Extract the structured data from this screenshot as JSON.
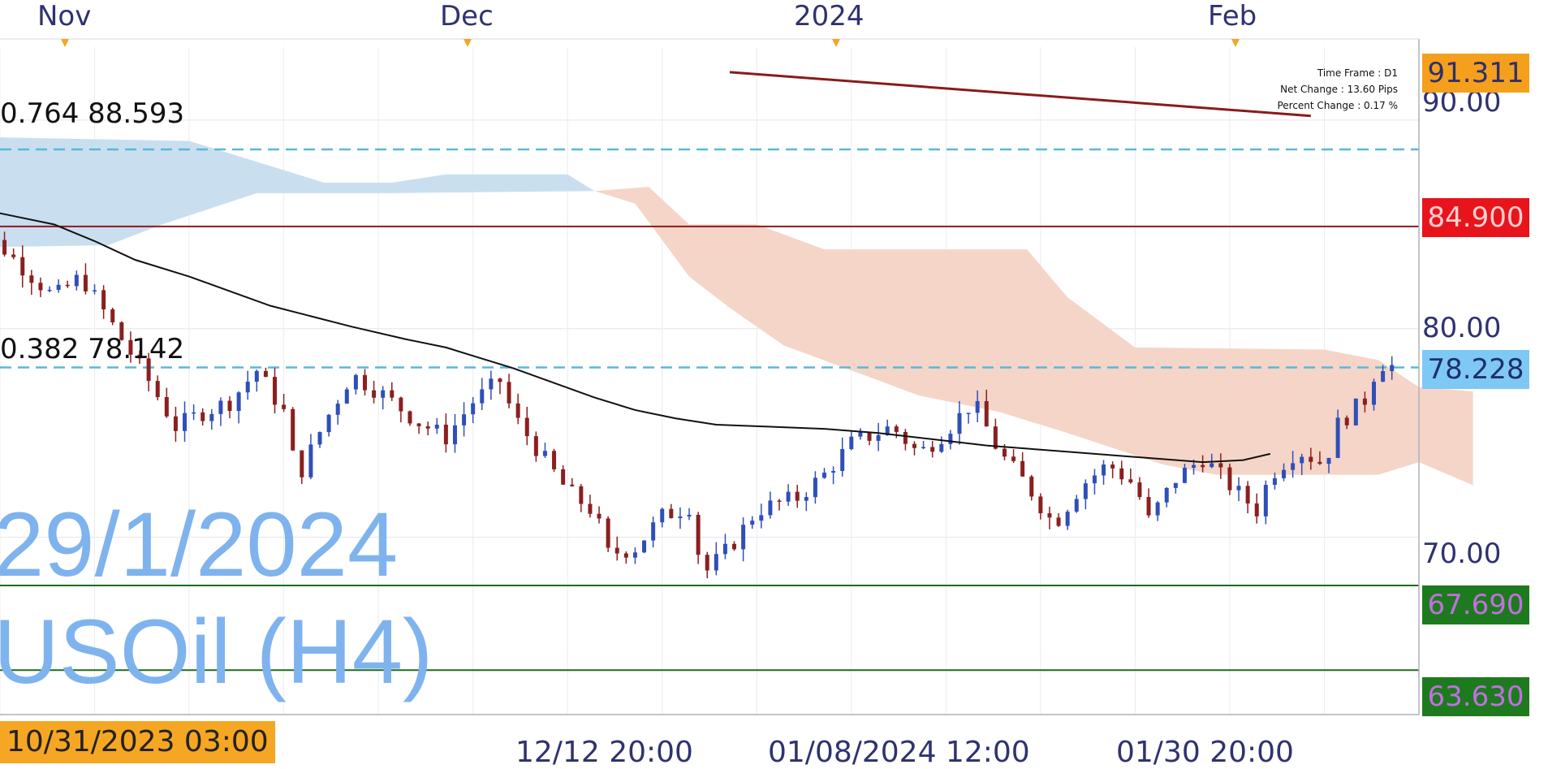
{
  "header": {
    "months": [
      "Nov",
      "Dec",
      "2024",
      "Feb"
    ]
  },
  "info_box": {
    "time_frame": "Time Frame : D1",
    "net_change": "Net Change : 13.60 Pips",
    "percent_change": "Percent Change : 0.17 %"
  },
  "watermark": {
    "date": "29/1/2024",
    "symbol": "USOil (H4)"
  },
  "fib_labels": {
    "upper": "0.764 88.593",
    "lower": "0.382 78.142"
  },
  "price_tags": [
    {
      "text": "91.311",
      "bg": "#f5a01c",
      "fg": "#2f2f6a"
    },
    {
      "text": "84.900",
      "bg": "#e8141c",
      "fg": "#ffd0d0"
    },
    {
      "text": "78.228",
      "bg": "#7ec8f5",
      "fg": "#1f2f6a"
    },
    {
      "text": "67.690",
      "bg": "#1e7a1e",
      "fg": "#c070e0"
    },
    {
      "text": "63.630",
      "bg": "#1e7a1e",
      "fg": "#c070e0"
    }
  ],
  "axis_labels": [
    "90.00",
    "80.00",
    "70.00"
  ],
  "bottom_labels": [
    "12/12 20:00",
    "01/08/2024 12:00",
    "01/30 20:00"
  ],
  "cursor_time": "10/31/2023 03:00",
  "chart_data": {
    "type": "candlestick",
    "instrument": "USOil",
    "timeframe": "H4",
    "y_range": [
      61.5,
      93.5
    ],
    "x_range": [
      "2023-10-27",
      "2024-02-09"
    ],
    "y_ticks": [
      90,
      80,
      70
    ],
    "horizontal_levels": [
      {
        "price": 84.9,
        "style": "solid",
        "color": "#8b1a1a"
      },
      {
        "price": 88.593,
        "style": "dashed",
        "color": "#5bb8d6"
      },
      {
        "price": 78.142,
        "style": "dashed",
        "color": "#5bb8d6"
      },
      {
        "price": 67.69,
        "style": "solid",
        "color": "#1e6b1e"
      },
      {
        "price": 63.63,
        "style": "solid",
        "color": "#1e6b1e"
      }
    ],
    "trendline": {
      "from": {
        "date": "2023-12-20",
        "price": 92.3
      },
      "to": {
        "date": "2024-02-01",
        "price": 90.2
      },
      "color": "#8b1a1a"
    },
    "cloud_blue_upper": [
      [
        "2023-10-25",
        89.2
      ],
      [
        "2023-11-10",
        89.0
      ],
      [
        "2023-11-20",
        87.0
      ],
      [
        "2023-11-25",
        87.0
      ],
      [
        "2023-11-29",
        87.4
      ],
      [
        "2023-12-08",
        87.4
      ],
      [
        "2023-12-10",
        86.6
      ]
    ],
    "cloud_blue_lower": [
      [
        "2023-10-25",
        83.9
      ],
      [
        "2023-11-04",
        84.0
      ],
      [
        "2023-11-08",
        85.0
      ],
      [
        "2023-11-15",
        86.5
      ],
      [
        "2023-11-25",
        86.5
      ],
      [
        "2023-12-10",
        86.6
      ]
    ],
    "cloud_red_upper": [
      [
        "2023-12-10",
        86.6
      ],
      [
        "2023-12-14",
        86.8
      ],
      [
        "2023-12-17",
        85.0
      ],
      [
        "2023-12-22",
        85.0
      ],
      [
        "2023-12-27",
        83.8
      ],
      [
        "2024-01-11",
        83.8
      ],
      [
        "2024-01-14",
        81.5
      ],
      [
        "2024-01-19",
        79.1
      ],
      [
        "2024-02-02",
        79.0
      ],
      [
        "2024-02-06",
        78.5
      ],
      [
        "2024-02-09",
        77.2
      ],
      [
        "2024-02-13",
        77.0
      ]
    ],
    "cloud_red_lower": [
      [
        "2023-12-10",
        86.6
      ],
      [
        "2023-12-13",
        86.0
      ],
      [
        "2023-12-17",
        82.5
      ],
      [
        "2023-12-20",
        81.0
      ],
      [
        "2023-12-24",
        79.2
      ],
      [
        "2023-12-29",
        78.0
      ],
      [
        "2024-01-03",
        76.8
      ],
      [
        "2024-01-09",
        76.0
      ],
      [
        "2024-01-14",
        75.0
      ],
      [
        "2024-01-21",
        73.5
      ],
      [
        "2024-01-25",
        73.0
      ],
      [
        "2024-02-06",
        73.0
      ],
      [
        "2024-02-09",
        73.6
      ],
      [
        "2024-02-13",
        72.5
      ]
    ],
    "moving_average": [
      [
        "2023-10-25",
        85.8
      ],
      [
        "2023-10-28",
        85.4
      ],
      [
        "2023-10-31",
        85.0
      ],
      [
        "2023-11-03",
        84.2
      ],
      [
        "2023-11-06",
        83.3
      ],
      [
        "2023-11-10",
        82.5
      ],
      [
        "2023-11-13",
        81.8
      ],
      [
        "2023-11-16",
        81.1
      ],
      [
        "2023-11-19",
        80.6
      ],
      [
        "2023-11-22",
        80.1
      ],
      [
        "2023-11-26",
        79.5
      ],
      [
        "2023-11-29",
        79.1
      ],
      [
        "2023-12-01",
        78.7
      ],
      [
        "2023-12-04",
        78.1
      ],
      [
        "2023-12-07",
        77.4
      ],
      [
        "2023-12-10",
        76.7
      ],
      [
        "2023-12-13",
        76.1
      ],
      [
        "2023-12-16",
        75.7
      ],
      [
        "2023-12-19",
        75.4
      ],
      [
        "2023-12-23",
        75.3
      ],
      [
        "2023-12-27",
        75.2
      ],
      [
        "2023-12-31",
        75.0
      ],
      [
        "2024-01-04",
        74.7
      ],
      [
        "2024-01-08",
        74.4
      ],
      [
        "2024-01-12",
        74.2
      ],
      [
        "2024-01-16",
        74.0
      ],
      [
        "2024-01-20",
        73.8
      ],
      [
        "2024-01-24",
        73.6
      ],
      [
        "2024-01-27",
        73.7
      ],
      [
        "2024-01-29",
        74.0
      ]
    ],
    "close_path": [
      [
        "2023-10-24",
        85.0
      ],
      [
        "2023-10-27",
        84.0
      ],
      [
        "2023-10-31",
        81.5
      ],
      [
        "2023-11-02",
        82.5
      ],
      [
        "2023-11-04",
        80.5
      ],
      [
        "2023-11-07",
        77.5
      ],
      [
        "2023-11-09",
        75.3
      ],
      [
        "2023-11-11",
        76.0
      ],
      [
        "2023-11-13",
        76.5
      ],
      [
        "2023-11-15",
        78.0
      ],
      [
        "2023-11-17",
        76.0
      ],
      [
        "2023-11-18",
        72.8
      ],
      [
        "2023-11-20",
        75.5
      ],
      [
        "2023-11-22",
        77.8
      ],
      [
        "2023-11-24",
        77.0
      ],
      [
        "2023-11-27",
        75.5
      ],
      [
        "2023-11-29",
        74.8
      ],
      [
        "2023-12-01",
        76.5
      ],
      [
        "2023-12-03",
        77.5
      ],
      [
        "2023-12-04",
        75.8
      ],
      [
        "2023-12-06",
        74.0
      ],
      [
        "2023-12-08",
        72.2
      ],
      [
        "2023-12-10",
        71.2
      ],
      [
        "2023-12-11",
        69.2
      ],
      [
        "2023-12-13",
        69.5
      ],
      [
        "2023-12-15",
        71.0
      ],
      [
        "2023-12-17",
        71.5
      ],
      [
        "2023-12-18",
        68.2
      ],
      [
        "2023-12-20",
        69.5
      ],
      [
        "2023-12-22",
        71.3
      ],
      [
        "2023-12-25",
        71.9
      ],
      [
        "2023-12-27",
        73.0
      ],
      [
        "2023-12-29",
        74.5
      ],
      [
        "2024-01-01",
        75.3
      ],
      [
        "2024-01-03",
        74.0
      ],
      [
        "2024-01-05",
        75.1
      ],
      [
        "2024-01-07",
        76.5
      ],
      [
        "2024-01-09",
        74.0
      ],
      [
        "2024-01-11",
        72.5
      ],
      [
        "2024-01-13",
        70.6
      ],
      [
        "2024-01-15",
        72.5
      ],
      [
        "2024-01-17",
        73.5
      ],
      [
        "2024-01-19",
        72.5
      ],
      [
        "2024-01-20",
        70.8
      ],
      [
        "2024-01-22",
        72.8
      ],
      [
        "2024-01-24",
        73.8
      ],
      [
        "2024-01-26",
        72.5
      ],
      [
        "2024-01-28",
        71.3
      ],
      [
        "2024-01-29",
        73.0
      ],
      [
        "2024-01-31",
        74.2
      ],
      [
        "2024-02-02",
        73.5
      ],
      [
        "2024-02-03",
        75.4
      ],
      [
        "2024-02-05",
        76.6
      ],
      [
        "2024-02-06",
        78.4
      ],
      [
        "2024-02-07",
        78.2
      ]
    ],
    "grid": true
  }
}
